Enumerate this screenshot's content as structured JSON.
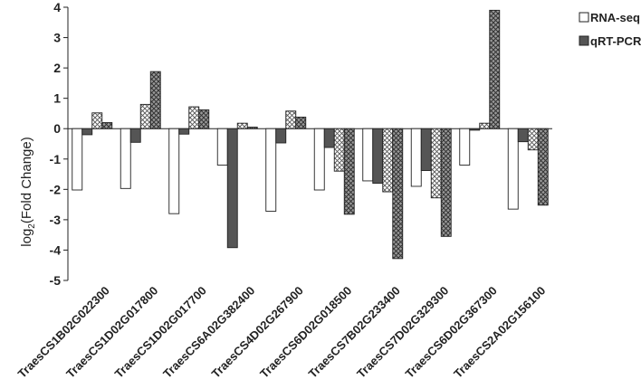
{
  "chart_data": {
    "type": "bar",
    "ylabel_main": "log",
    "ylabel_sub": "2",
    "ylabel_rest": "(Fold Change)",
    "ylim": [
      -5,
      4
    ],
    "yticks": [
      "-5",
      "-4",
      "-3",
      "-2",
      "-1",
      "0",
      "1",
      "2",
      "3",
      "4"
    ],
    "categories": [
      "TraesCS1B02G022300",
      "TraesCS1D02G017800",
      "TraesCS1D02G017700",
      "TraesCS6A02G382400",
      "TraesCS4D02G267900",
      "TraesCS6D02G018500",
      "TraesCS7B02G233400",
      "TraesCS7D02G329300",
      "TraesCS6D02G367300",
      "TraesCS2A02G156100"
    ],
    "legend_position": "top-right",
    "legend": [
      "RNA-seq",
      "qRT-PCR"
    ],
    "series": [
      {
        "values": [
          -2.02,
          -1.97,
          -2.8,
          -1.2,
          -2.72,
          -2.02,
          -1.72,
          -1.9,
          -1.2,
          -2.65
        ],
        "fill": "#ffffff",
        "pattern": "solid"
      },
      {
        "values": [
          -0.2,
          -0.45,
          -0.18,
          -3.92,
          -0.47,
          -0.62,
          -1.8,
          -1.38,
          -0.05,
          -0.43
        ],
        "fill": "#555555",
        "pattern": "solid"
      },
      {
        "values": [
          0.52,
          0.8,
          0.72,
          0.18,
          0.58,
          -1.4,
          -2.08,
          -2.28,
          0.18,
          -0.7
        ],
        "fill": "#cccccc",
        "pattern": "crosshatch"
      },
      {
        "values": [
          0.2,
          1.88,
          0.62,
          0.05,
          0.38,
          -2.82,
          -4.28,
          -3.55,
          3.9,
          -2.52
        ],
        "fill": "#888888",
        "pattern": "crosshatch"
      }
    ]
  }
}
